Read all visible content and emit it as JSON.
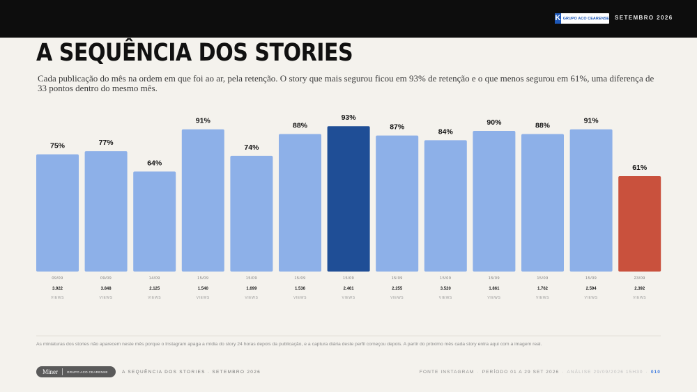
{
  "header": {
    "brand": "GRUPO ACO CEARENSE",
    "date": "SETEMBRO 2026"
  },
  "title": "A SEQUÊNCIA DOS STORIES",
  "subtitle": "Cada publicação do mês na ordem em que foi ao ar, pela retenção. O story que mais segurou ficou em 93% de retenção e o que menos segurou em 61%, uma diferença de 33 pontos dentro do mesmo mês.",
  "colors": {
    "bar": "#8db0e8",
    "highlight_max": "#1f4e96",
    "highlight_min": "#c9513d"
  },
  "chart_data": {
    "type": "bar",
    "title": "A SEQUÊNCIA DOS STORIES",
    "value_unit": "%",
    "ylim": [
      0,
      100
    ],
    "grid": false,
    "views_unit": "VIEWS",
    "bars": [
      {
        "date": "09/09",
        "retention": 75,
        "views": "3.922",
        "highlight": ""
      },
      {
        "date": "09/09",
        "retention": 77,
        "views": "3.848",
        "highlight": ""
      },
      {
        "date": "14/09",
        "retention": 64,
        "views": "2.125",
        "highlight": ""
      },
      {
        "date": "15/09",
        "retention": 91,
        "views": "1.540",
        "highlight": ""
      },
      {
        "date": "15/09",
        "retention": 74,
        "views": "1.699",
        "highlight": ""
      },
      {
        "date": "15/09",
        "retention": 88,
        "views": "1.536",
        "highlight": ""
      },
      {
        "date": "15/09",
        "retention": 93,
        "views": "2.461",
        "highlight": "max"
      },
      {
        "date": "15/09",
        "retention": 87,
        "views": "2.255",
        "highlight": ""
      },
      {
        "date": "15/09",
        "retention": 84,
        "views": "3.520",
        "highlight": ""
      },
      {
        "date": "15/09",
        "retention": 90,
        "views": "1.861",
        "highlight": ""
      },
      {
        "date": "15/09",
        "retention": 88,
        "views": "1.762",
        "highlight": ""
      },
      {
        "date": "15/09",
        "retention": 91,
        "views": "2.594",
        "highlight": ""
      },
      {
        "date": "23/09",
        "retention": 61,
        "views": "2.392",
        "highlight": "min"
      }
    ]
  },
  "footnote": "As miniaturas dos stories não aparecem neste mês porque o Instagram apaga a mídia do story 24 horas depois da publicação, e a captura diária deste perfil começou depois. A partir do próximo mês cada story entra aqui com a imagem real.",
  "footer": {
    "logo_text": "Miner",
    "partner_text": "GRUPO ACO CEARENSE",
    "section_title": "A SEQUÊNCIA DOS STORIES · SETEMBRO 2026",
    "source": "FONTE INSTAGRAM",
    "period": "PERÍODO 01 A 29 SET 2026",
    "analysis": "ANÁLISE 29/09/2026 15H30",
    "page": "010"
  }
}
